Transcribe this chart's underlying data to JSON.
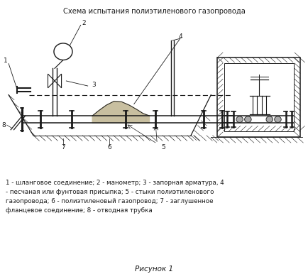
{
  "title": "Схема испытания полиэтиленового газопровода",
  "caption": "Рисунок 1",
  "legend_text": "1 - шланговое соединение; 2 - манометр; 3 - запорная арматура, 4\n- песчаная или фунтовая присыпка; 5 - стыки полиэтиленового\nгазопровода; 6 - полиэтиленовый газопровод; 7 - заглушенное\nфланцевое соединение; 8 - отводная трубка",
  "bg_color": "#ffffff",
  "line_color": "#1a1a1a",
  "fig_width": 4.34,
  "fig_height": 3.93
}
